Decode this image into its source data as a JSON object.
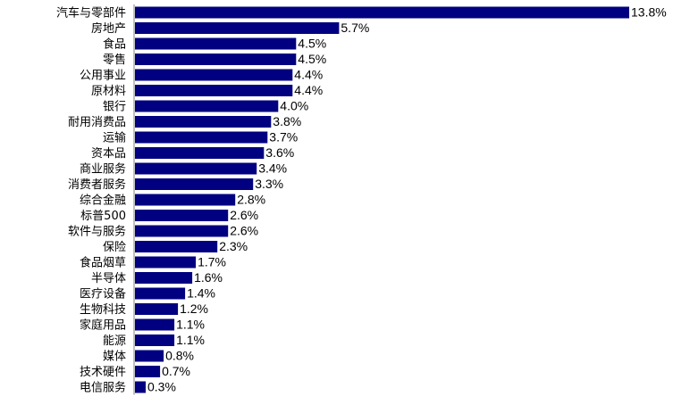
{
  "chart_data": {
    "type": "bar",
    "orientation": "horizontal",
    "categories": [
      "汽车与零部件",
      "房地产",
      "食品",
      "零售",
      "公用事业",
      "原材料",
      "银行",
      "耐用消费品",
      "运输",
      "资本品",
      "商业服务",
      "消费者服务",
      "综合金融",
      "标普500",
      "软件与服务",
      "保险",
      "食品烟草",
      "半导体",
      "医疗设备",
      "生物科技",
      "家庭用品",
      "能源",
      "媒体",
      "技术硬件",
      "电信服务"
    ],
    "values": [
      13.8,
      5.7,
      4.5,
      4.5,
      4.4,
      4.4,
      4.0,
      3.8,
      3.7,
      3.6,
      3.4,
      3.3,
      2.8,
      2.6,
      2.6,
      2.3,
      1.7,
      1.6,
      1.4,
      1.2,
      1.1,
      1.1,
      0.8,
      0.7,
      0.3
    ],
    "value_labels": [
      "13.8%",
      "5.7%",
      "4.5%",
      "4.5%",
      "4.4%",
      "4.4%",
      "4.0%",
      "3.8%",
      "3.7%",
      "3.6%",
      "3.4%",
      "3.3%",
      "2.8%",
      "2.6%",
      "2.6%",
      "2.3%",
      "1.7%",
      "1.6%",
      "1.4%",
      "1.2%",
      "1.1%",
      "1.1%",
      "0.8%",
      "0.7%",
      "0.3%"
    ],
    "unit": "%",
    "xlim": [
      0,
      13.8
    ],
    "grid": false,
    "legend": "none",
    "bar_color": "#000080",
    "axis_color": "#808080"
  }
}
